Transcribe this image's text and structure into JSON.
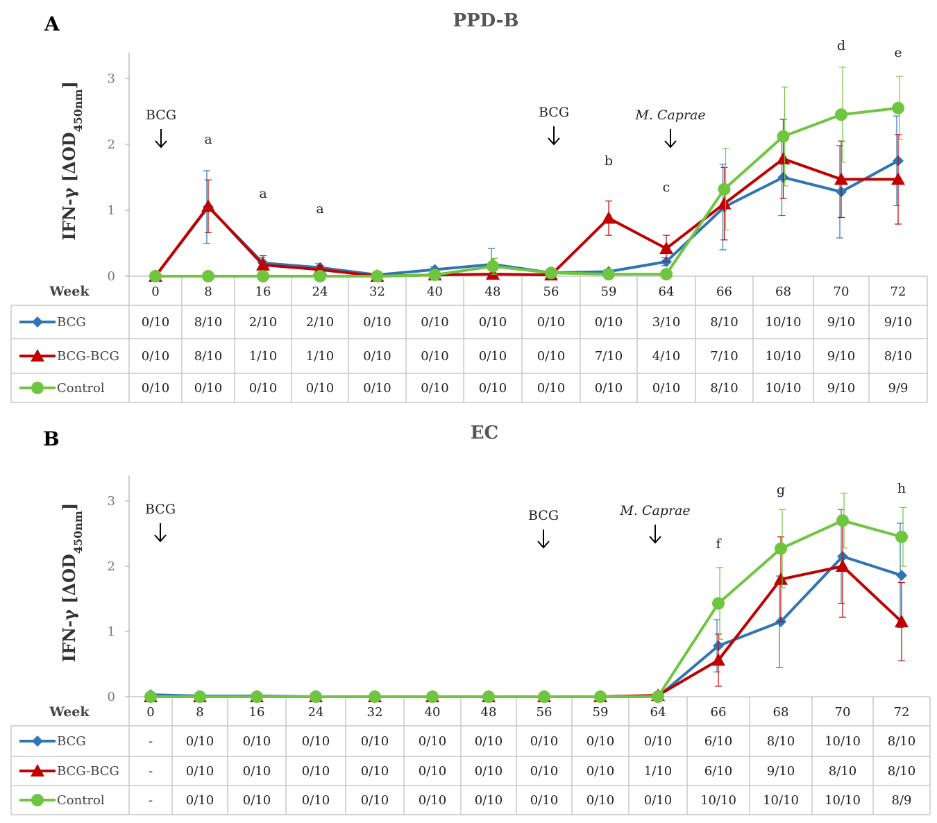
{
  "chart_data": [
    {
      "type": "line",
      "panel": "A",
      "title": "PPD-B",
      "ylabel": "IFN-γ [ΔOD450nm]",
      "ylim": [
        0,
        3.5
      ],
      "yticks": [
        "0",
        "1",
        "2",
        "3"
      ],
      "row_header": "Week",
      "categories": [
        "0",
        "8",
        "16",
        "24",
        "32",
        "40",
        "48",
        "56",
        "59",
        "64",
        "66",
        "68",
        "70",
        "72"
      ],
      "series": [
        {
          "name": "BCG",
          "color": "#2e75b6",
          "marker": "diamond",
          "values": [
            0.0,
            1.05,
            0.2,
            0.13,
            0.02,
            0.1,
            0.18,
            0.05,
            0.07,
            0.22,
            1.05,
            1.5,
            1.28,
            1.75
          ],
          "errors": [
            0.0,
            0.55,
            0.08,
            0.06,
            0.02,
            0.04,
            0.24,
            0.02,
            0.03,
            0.06,
            0.65,
            0.58,
            0.7,
            0.68
          ],
          "ratios": [
            "0/10",
            "8/10",
            "2/10",
            "2/10",
            "0/10",
            "0/10",
            "0/10",
            "0/10",
            "0/10",
            "3/10",
            "8/10",
            "10/10",
            "9/10",
            "9/10"
          ]
        },
        {
          "name": "BCG-BCG",
          "color": "#c00000",
          "marker": "triangle",
          "values": [
            0.0,
            1.06,
            0.17,
            0.1,
            0.0,
            0.02,
            0.03,
            0.02,
            0.88,
            0.42,
            1.1,
            1.78,
            1.47,
            1.47
          ],
          "errors": [
            0.0,
            0.4,
            0.14,
            0.06,
            0.01,
            0.02,
            0.02,
            0.02,
            0.26,
            0.2,
            0.55,
            0.6,
            0.58,
            0.68
          ],
          "ratios": [
            "0/10",
            "8/10",
            "1/10",
            "1/10",
            "0/10",
            "0/10",
            "0/10",
            "0/10",
            "7/10",
            "4/10",
            "7/10",
            "10/10",
            "9/10",
            "8/10"
          ]
        },
        {
          "name": "Control",
          "color": "#70c540",
          "marker": "circle",
          "values": [
            0.0,
            0.0,
            0.0,
            0.0,
            0.0,
            0.02,
            0.15,
            0.05,
            0.03,
            0.03,
            1.32,
            2.12,
            2.45,
            2.55
          ],
          "errors": [
            0.0,
            0.0,
            0.0,
            0.0,
            0.0,
            0.02,
            0.12,
            0.02,
            0.02,
            0.02,
            0.62,
            0.75,
            0.72,
            0.48
          ],
          "ratios": [
            "0/10",
            "0/10",
            "0/10",
            "0/10",
            "0/10",
            "0/10",
            "0/10",
            "0/10",
            "0/10",
            "0/10",
            "8/10",
            "10/10",
            "9/10",
            "9/9"
          ]
        }
      ],
      "annotations": [
        {
          "text": "BCG",
          "at": "0",
          "arrow": true
        },
        {
          "text": "BCG",
          "at": "56",
          "arrow": true
        },
        {
          "text": "M. Caprae",
          "at": "64",
          "arrow": true,
          "italic": true
        },
        {
          "text": "a",
          "at": "8"
        },
        {
          "text": "a",
          "at": "16"
        },
        {
          "text": "a",
          "at": "24"
        },
        {
          "text": "b",
          "at": "59"
        },
        {
          "text": "c",
          "at": "64"
        },
        {
          "text": "d",
          "at": "70"
        },
        {
          "text": "e",
          "at": "72"
        }
      ]
    },
    {
      "type": "line",
      "panel": "B",
      "title": "EC",
      "ylabel": "IFN-γ [ΔOD450nm]",
      "ylim": [
        0,
        3.5
      ],
      "yticks": [
        "0",
        "1",
        "2",
        "3"
      ],
      "row_header": "Week",
      "categories": [
        "0",
        "8",
        "16",
        "24",
        "32",
        "40",
        "48",
        "56",
        "59",
        "64",
        "66",
        "68",
        "70",
        "72"
      ],
      "series": [
        {
          "name": "BCG",
          "color": "#2e75b6",
          "marker": "diamond",
          "values": [
            0.03,
            0.01,
            0.01,
            0.0,
            0.0,
            0.0,
            0.0,
            0.0,
            0.0,
            0.0,
            0.78,
            1.15,
            2.15,
            1.86
          ],
          "errors": [
            0,
            0,
            0,
            0,
            0,
            0,
            0,
            0,
            0,
            0,
            0.4,
            0.7,
            0.72,
            0.8
          ],
          "ratios": [
            "-",
            "0/10",
            "0/10",
            "0/10",
            "0/10",
            "0/10",
            "0/10",
            "0/10",
            "0/10",
            "0/10",
            "6/10",
            "8/10",
            "10/10",
            "8/10"
          ]
        },
        {
          "name": "BCG-BCG",
          "color": "#c00000",
          "marker": "triangle",
          "values": [
            0.0,
            0.0,
            0.0,
            0.0,
            0.0,
            0.0,
            0.0,
            0.0,
            0.0,
            0.02,
            0.56,
            1.8,
            2.0,
            1.15
          ],
          "errors": [
            0,
            0,
            0,
            0,
            0,
            0,
            0,
            0,
            0,
            0,
            0.4,
            0.65,
            0.78,
            0.6
          ],
          "ratios": [
            "-",
            "0/10",
            "0/10",
            "0/10",
            "0/10",
            "0/10",
            "0/10",
            "0/10",
            "0/10",
            "1/10",
            "6/10",
            "9/10",
            "8/10",
            "8/10"
          ]
        },
        {
          "name": "Control",
          "color": "#70c540",
          "marker": "circle",
          "values": [
            0.0,
            0.0,
            0.0,
            0.0,
            0.0,
            0.0,
            0.0,
            0.0,
            0.0,
            0.0,
            1.43,
            2.27,
            2.7,
            2.45
          ],
          "errors": [
            0,
            0,
            0,
            0,
            0,
            0,
            0,
            0,
            0,
            0,
            0.55,
            0.6,
            0.42,
            0.45
          ],
          "ratios": [
            "-",
            "0/10",
            "0/10",
            "0/10",
            "0/10",
            "0/10",
            "0/10",
            "0/10",
            "0/10",
            "0/10",
            "10/10",
            "10/10",
            "10/10",
            "8/9"
          ]
        }
      ],
      "annotations": [
        {
          "text": "BCG",
          "at": "0",
          "arrow": true
        },
        {
          "text": "BCG",
          "at": "56",
          "arrow": true
        },
        {
          "text": "M. Caprae",
          "at": "64",
          "arrow": true,
          "italic": true
        },
        {
          "text": "f",
          "at": "66"
        },
        {
          "text": "g",
          "at": "68"
        },
        {
          "text": "h",
          "at": "72"
        }
      ]
    }
  ]
}
